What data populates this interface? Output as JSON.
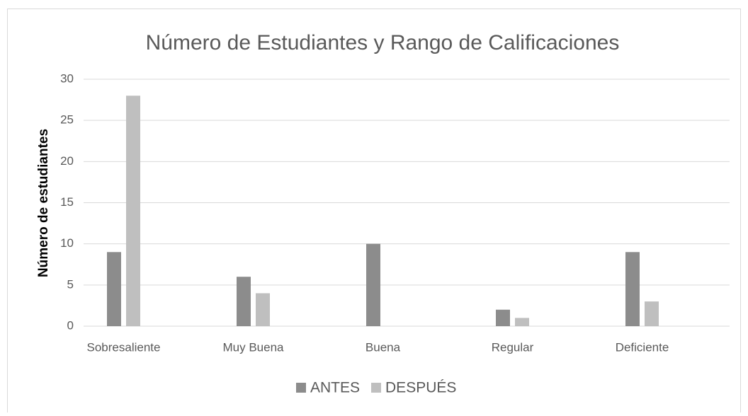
{
  "chart_data": {
    "type": "bar",
    "title": "Número de Estudiantes y Rango de Calificaciones",
    "y_label": "Número de estudiantes",
    "categories": [
      "Sobresaliente",
      "Muy Buena",
      "Buena",
      "Regular",
      "Deficiente"
    ],
    "series": [
      {
        "name": "ANTES",
        "color": "#8c8c8c",
        "values": [
          9,
          6,
          10,
          2,
          9
        ]
      },
      {
        "name": "DESPUÉS",
        "color": "#bfbfbf",
        "values": [
          28,
          4,
          0,
          1,
          3
        ]
      }
    ],
    "ylim": [
      0,
      30
    ],
    "yticks": [
      0,
      5,
      10,
      15,
      20,
      25,
      30
    ],
    "grid": true,
    "legend": "bottom"
  }
}
